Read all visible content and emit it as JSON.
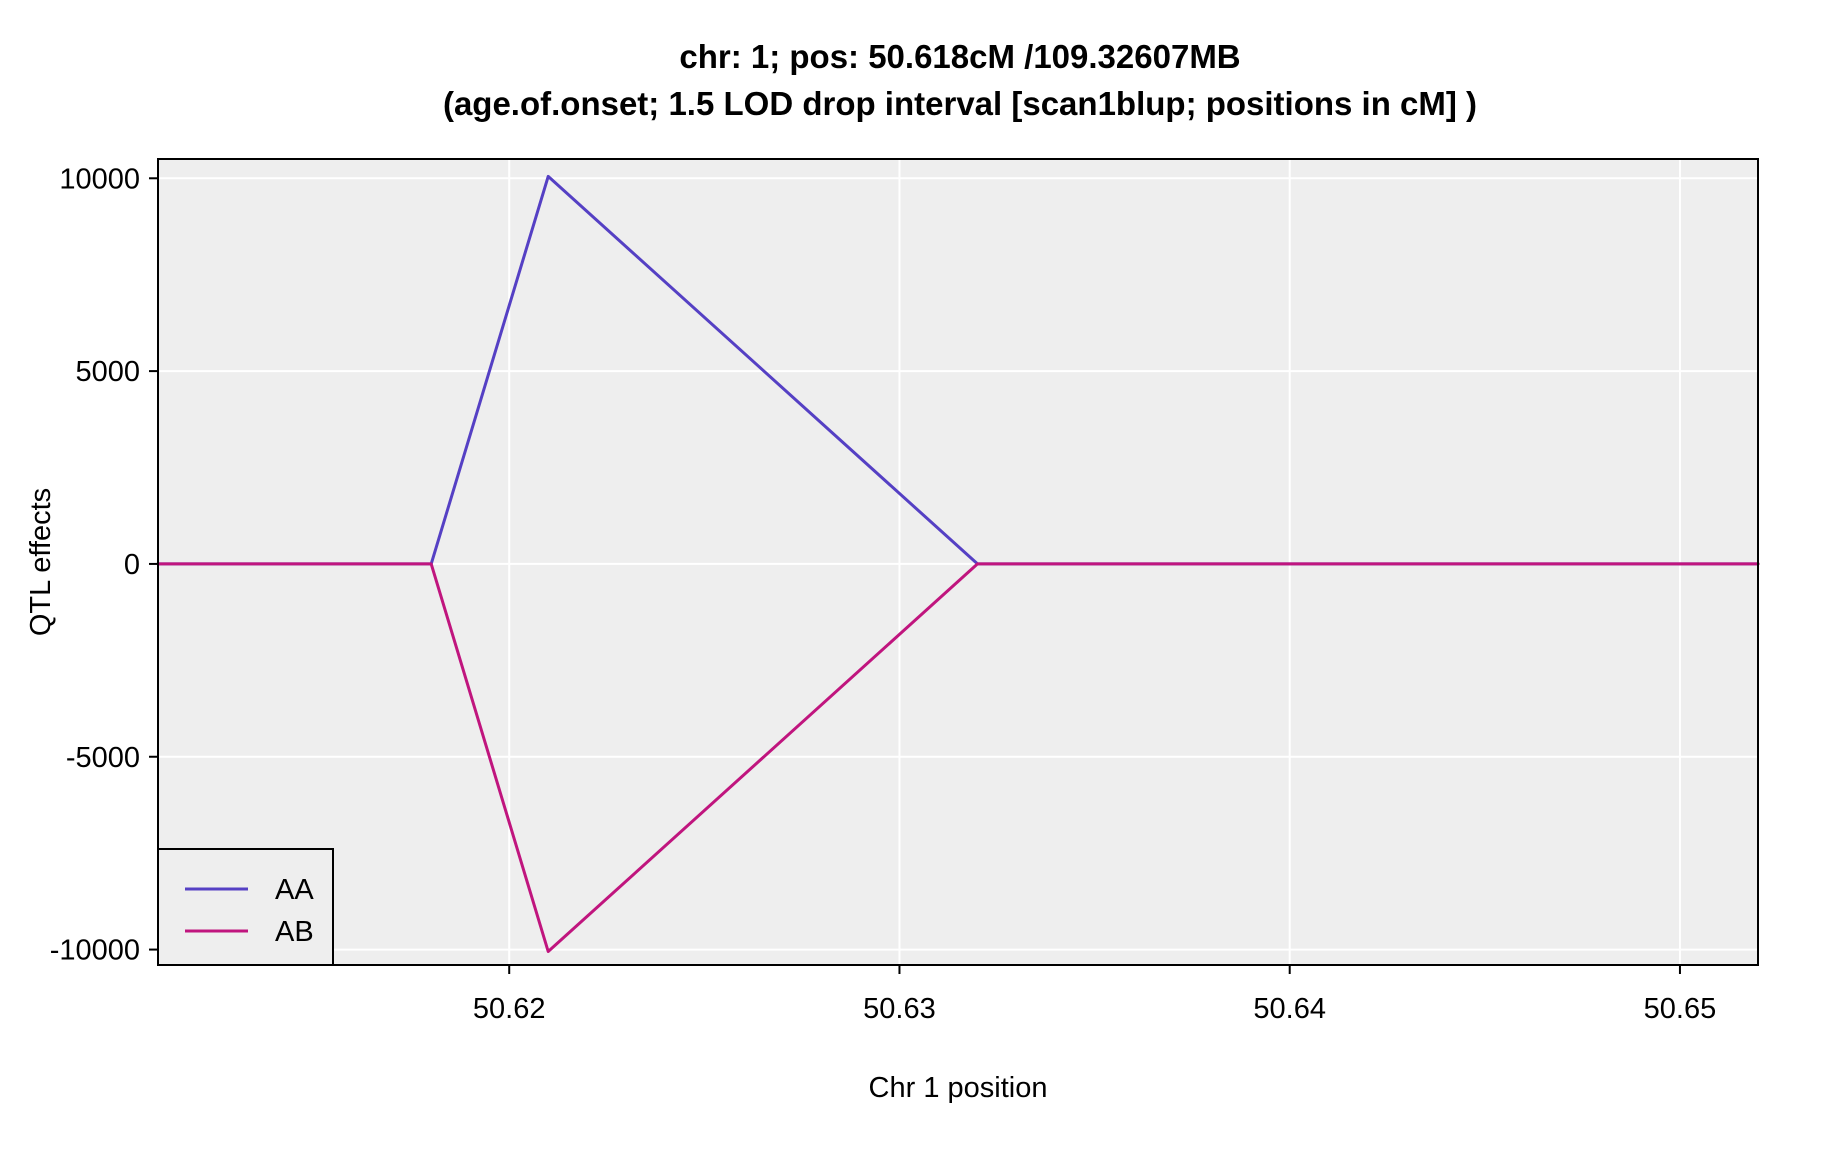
{
  "chart_data": {
    "type": "line",
    "title_line1": "chr: 1; pos: 50.618cM /109.32607MB",
    "title_line2": "(age.of.onset; 1.5 LOD drop interval [scan1blup; positions in cM] )",
    "xlabel": "Chr 1 position",
    "ylabel": "QTL effects",
    "xlim": [
      50.611,
      50.652
    ],
    "ylim": [
      -10400,
      10500
    ],
    "x_ticks": [
      50.62,
      50.63,
      50.64,
      50.65
    ],
    "x_tick_labels": [
      "50.62",
      "50.63",
      "50.64",
      "50.65"
    ],
    "y_ticks": [
      -10000,
      -5000,
      0,
      5000,
      10000
    ],
    "y_tick_labels": [
      "-10000",
      "-5000",
      "0",
      "5000",
      "10000"
    ],
    "grid": true,
    "legend_position": "bottom-left",
    "panel_background": "#EEEEEE",
    "grid_color": "#FFFFFF",
    "series": [
      {
        "name": "AA",
        "color": "#5540C4",
        "x": [
          50.611,
          50.618,
          50.621,
          50.632,
          50.652
        ],
        "y": [
          0,
          0,
          10050,
          0,
          0
        ]
      },
      {
        "name": "AB",
        "color": "#C0157E",
        "x": [
          50.611,
          50.618,
          50.621,
          50.632,
          50.652
        ],
        "y": [
          0,
          0,
          -10050,
          0,
          0
        ]
      }
    ]
  }
}
